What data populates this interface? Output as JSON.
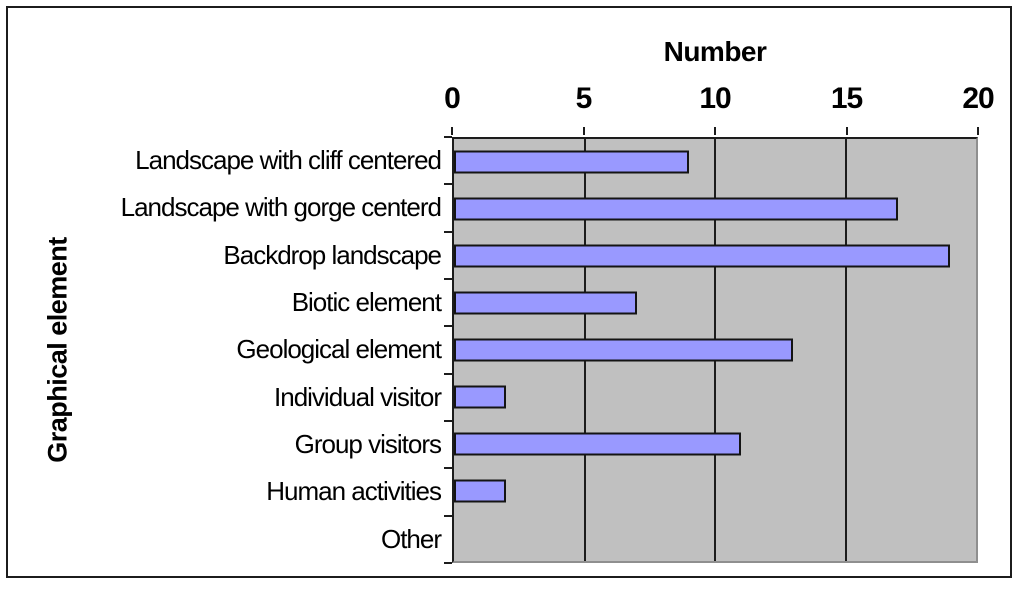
{
  "chart_data": {
    "type": "bar",
    "orientation": "horizontal",
    "title": "Number",
    "xlabel": "Number",
    "ylabel": "Graphical element",
    "categories": [
      "Landscape with cliff centered",
      "Landscape with gorge centerd",
      "Backdrop landscape",
      "Biotic element",
      "Geological element",
      "Individual visitor",
      "Group visitors",
      "Human activities",
      "Other"
    ],
    "values": [
      9,
      17,
      19,
      7,
      13,
      2,
      11,
      2,
      0
    ],
    "xlim": [
      0,
      20
    ],
    "xticks": [
      0,
      5,
      10,
      15,
      20
    ],
    "grid": true,
    "legend": false,
    "colors": {
      "bar_fill": "#9999FF",
      "bar_border": "#141414",
      "plot_background": "#C0C0C0",
      "gridline": "#1C1C1C",
      "frame_border": "#1C1C1C",
      "page_background": "#FFFFFF",
      "text": "#000000"
    }
  }
}
